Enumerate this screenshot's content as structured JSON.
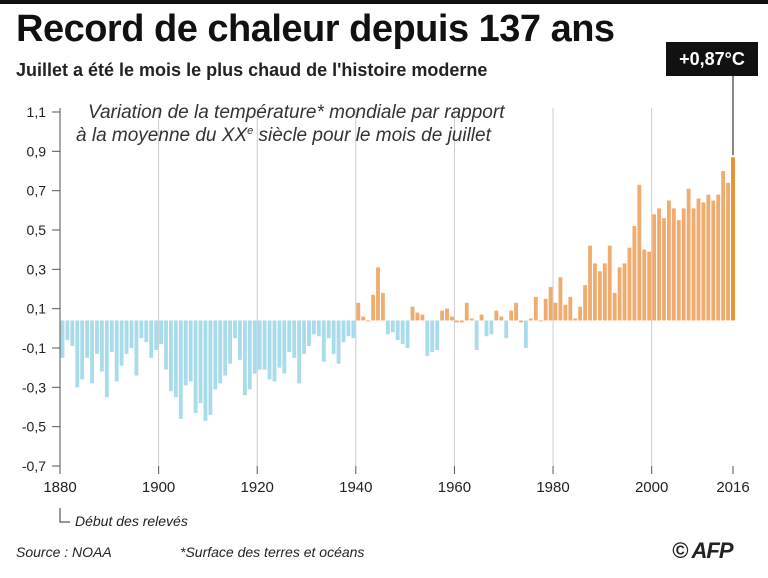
{
  "header": {
    "title": "Record de chaleur depuis 137 ans",
    "subtitle": "Juillet a été le mois le plus chaud de l'histoire moderne"
  },
  "callout": {
    "label": "+0,87°C",
    "year": 2016,
    "value": 0.87
  },
  "description": {
    "line1": "Variation de la température* mondiale par rapport",
    "line2_prefix": "à la moyenne du XX",
    "line2_sup": "e",
    "line2_suffix": " siècle pour le mois de juillet"
  },
  "annotation": {
    "label": "Début des relevés"
  },
  "footer": {
    "source": "Source : NOAA",
    "footnote": "*Surface des terres et océans",
    "logo": "© AFP"
  },
  "colors": {
    "negative": "#a9dcea",
    "positive": "#f0ac6f",
    "last": "#e8922e",
    "grid": "#cccccc"
  },
  "chart_data": {
    "type": "bar",
    "xlabel": "",
    "ylabel": "",
    "ylim": [
      -0.7,
      1.1
    ],
    "y_ticks": [
      {
        "value": 1.1,
        "label": "1,1"
      },
      {
        "value": 0.9,
        "label": "0,9"
      },
      {
        "value": 0.7,
        "label": "0,7"
      },
      {
        "value": 0.5,
        "label": "0,5"
      },
      {
        "value": 0.3,
        "label": "0,3"
      },
      {
        "value": 0.1,
        "label": "0,1"
      },
      {
        "value": -0.1,
        "label": "-0,1"
      },
      {
        "value": -0.3,
        "label": "-0,3"
      },
      {
        "value": -0.5,
        "label": "-0,5"
      },
      {
        "value": -0.7,
        "label": "-0,7"
      }
    ],
    "x_ticks": [
      1880,
      1900,
      1920,
      1940,
      1960,
      1980,
      2000,
      2016
    ],
    "grid": "vertical",
    "years_start": 1880,
    "values": [
      -0.15,
      -0.06,
      -0.09,
      -0.3,
      -0.26,
      -0.15,
      -0.28,
      -0.13,
      -0.22,
      -0.35,
      -0.12,
      -0.27,
      -0.19,
      -0.13,
      -0.1,
      -0.24,
      -0.05,
      -0.07,
      -0.15,
      -0.11,
      -0.08,
      -0.21,
      -0.32,
      -0.35,
      -0.46,
      -0.29,
      -0.27,
      -0.43,
      -0.38,
      -0.47,
      -0.44,
      -0.31,
      -0.28,
      -0.24,
      -0.18,
      -0.05,
      -0.16,
      -0.34,
      -0.31,
      -0.23,
      -0.21,
      -0.21,
      -0.26,
      -0.27,
      -0.2,
      -0.23,
      -0.12,
      -0.15,
      -0.28,
      -0.13,
      -0.09,
      -0.03,
      -0.04,
      -0.17,
      -0.05,
      -0.13,
      -0.18,
      -0.07,
      -0.04,
      -0.05,
      0.13,
      0.06,
      0.04,
      0.17,
      0.31,
      0.18,
      -0.03,
      -0.02,
      -0.06,
      -0.08,
      -0.1,
      0.11,
      0.08,
      0.07,
      -0.14,
      -0.12,
      -0.11,
      0.09,
      0.1,
      0.06,
      0.03,
      0.03,
      0.13,
      0.05,
      -0.11,
      0.07,
      -0.04,
      -0.03,
      0.09,
      0.06,
      -0.05,
      0.09,
      0.13,
      0.03,
      -0.1,
      0.05,
      0.16,
      0.04,
      0.15,
      0.21,
      0.13,
      0.26,
      0.12,
      0.16,
      0.05,
      0.11,
      0.22,
      0.42,
      0.33,
      0.29,
      0.33,
      0.42,
      0.18,
      0.31,
      0.33,
      0.41,
      0.52,
      0.73,
      0.4,
      0.39,
      0.58,
      0.61,
      0.56,
      0.65,
      0.61,
      0.55,
      0.61,
      0.71,
      0.61,
      0.66,
      0.64,
      0.68,
      0.65,
      0.68,
      0.8,
      0.74,
      0.87
    ]
  }
}
